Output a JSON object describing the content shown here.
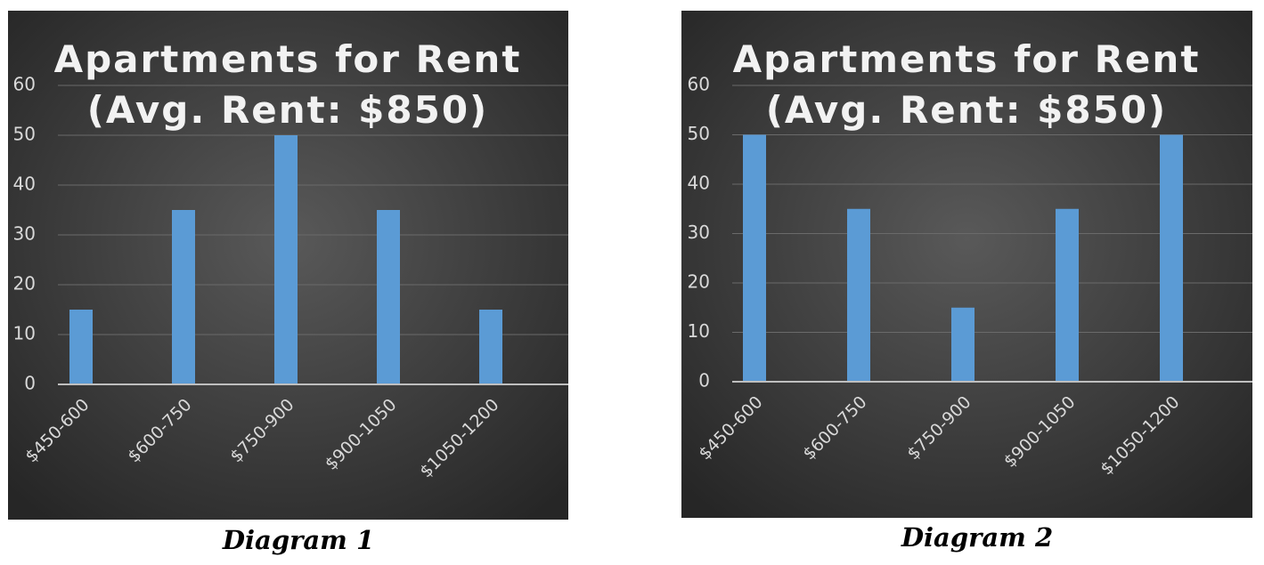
{
  "chart_data": [
    {
      "type": "bar",
      "title": [
        "Apartments for Rent",
        "(Avg. Rent: $850)"
      ],
      "categories": [
        "$450-600",
        "$600-750",
        "$750-900",
        "$900-1050",
        "$1050-1200"
      ],
      "values": [
        15,
        35,
        50,
        35,
        15
      ],
      "color": "#5b9bd5",
      "ylim": [
        0,
        60
      ],
      "yticks": [
        0,
        10,
        20,
        30,
        40,
        50,
        60
      ],
      "grid": true,
      "caption": "Diagram 1"
    },
    {
      "type": "bar",
      "title": [
        "Apartments for Rent",
        "(Avg. Rent: $850)"
      ],
      "categories": [
        "$450-600",
        "$600-750",
        "$750-900",
        "$900-1050",
        "$1050-1200"
      ],
      "values": [
        50,
        35,
        15,
        35,
        50
      ],
      "color": "#5b9bd5",
      "ylim": [
        0,
        60
      ],
      "yticks": [
        0,
        10,
        20,
        30,
        40,
        50,
        60
      ],
      "grid": true,
      "caption": "Diagram 2"
    }
  ]
}
